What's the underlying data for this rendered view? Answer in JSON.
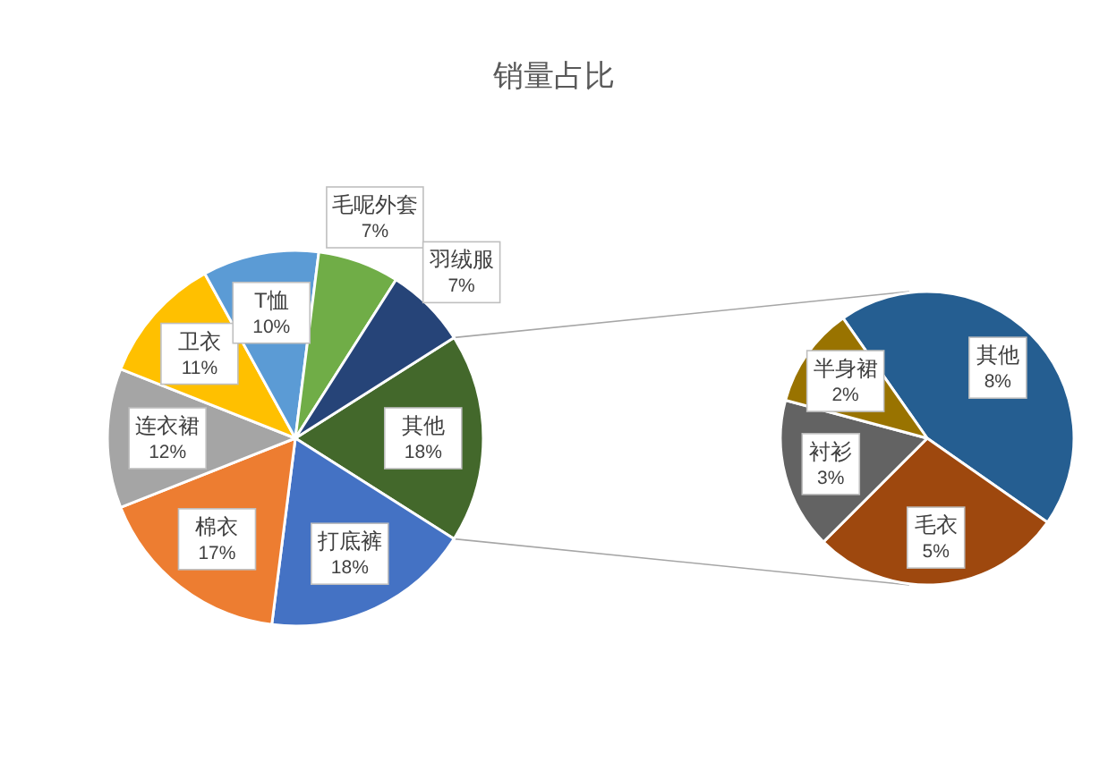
{
  "chart_data": [
    {
      "type": "pie",
      "title": "销量占比",
      "categories": [
        "其他",
        "打底裤",
        "棉衣",
        "连衣裙",
        "卫衣",
        "T恤",
        "毛呢外套",
        "羽绒服"
      ],
      "values": [
        18,
        18,
        17,
        12,
        11,
        10,
        7,
        7
      ],
      "value_labels": [
        "18%",
        "18%",
        "17%",
        "12%",
        "11%",
        "10%",
        "7%",
        "7%"
      ],
      "colors": [
        "#43682b",
        "#4472c4",
        "#ed7d31",
        "#a5a5a5",
        "#ffc000",
        "#5b9bd5",
        "#70ad47",
        "#264478"
      ]
    },
    {
      "type": "pie",
      "categories": [
        "其他",
        "毛衣",
        "衬衫",
        "半身裙"
      ],
      "values": [
        8,
        5,
        3,
        2
      ],
      "value_labels": [
        "8%",
        "5%",
        "3%",
        "2%"
      ],
      "colors": [
        "#255e91",
        "#9e480e",
        "#636363",
        "#997300"
      ]
    }
  ]
}
